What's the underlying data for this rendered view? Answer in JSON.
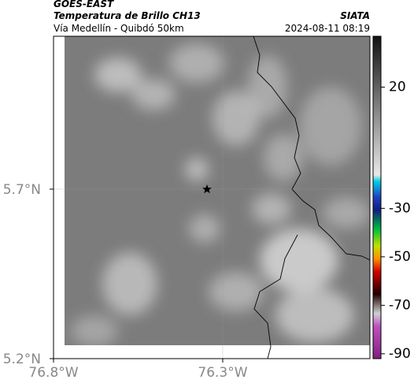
{
  "header": {
    "title": "GOES-EAST",
    "subtitle": "Temperatura de Brillo CH13",
    "region": "Vía Medellín - Quibdó 50km",
    "source": "SIATA",
    "timestamp": "2024-08-11 08:19"
  },
  "map": {
    "xlim": [
      -76.8,
      -75.865
    ],
    "ylim": [
      5.2,
      6.151
    ],
    "xticks": [
      {
        "value": -76.8,
        "label": "76.8°W"
      },
      {
        "value": -76.3,
        "label": "76.3°W"
      }
    ],
    "yticks": [
      {
        "value": 5.2,
        "label": "5.2°N"
      },
      {
        "value": 5.7,
        "label": "5.7°N"
      }
    ],
    "grid": true
  },
  "colorbar": {
    "clim": [
      -92,
      41
    ],
    "ticks": [
      20,
      -30,
      -50,
      -70,
      -90
    ]
  }
}
